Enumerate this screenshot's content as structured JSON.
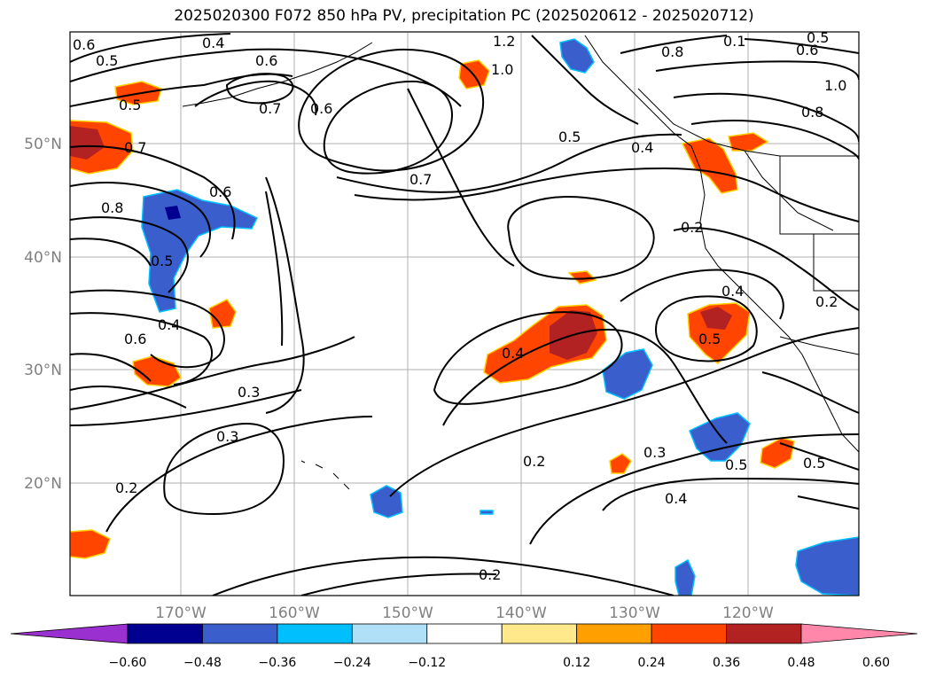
{
  "title": "2025020300 F072 850 hPa PV, precipitation PC (2025020612 - 2025020712)",
  "lat_labels": [
    "50°N",
    "40°N",
    "30°N",
    "20°N"
  ],
  "lon_labels": [
    "170°W",
    "160°W",
    "150°W",
    "140°W",
    "130°W",
    "120°W"
  ],
  "contour_labels": [
    "0.6",
    "0.4",
    "0.5",
    "0.6",
    "0.7",
    "0.6",
    "0.5",
    "0.7",
    "0.8",
    "0.6",
    "0.5",
    "0.4",
    "0.6",
    "0.3",
    "0.3",
    "0.2",
    "1.2",
    "1.0",
    "0.5",
    "0.7",
    "0.4",
    "0.8",
    "0.1",
    "0.5",
    "0.6",
    "1.0",
    "0.8",
    "0.2",
    "0.4",
    "0.2",
    "0.5",
    "0.4",
    "0.2",
    "0.3",
    "0.5",
    "0.4",
    "0.5",
    "0.2"
  ],
  "colorbar": {
    "colors": [
      "#9b30d0",
      "#000090",
      "#3a5fcd",
      "#00bfff",
      "#b0e0f8",
      "#ffffff",
      "#ffe98a",
      "#ffa000",
      "#ff4500",
      "#b22222",
      "#ff88aa"
    ],
    "tick_labels": [
      "−0.60",
      "−0.48",
      "−0.36",
      "−0.24",
      "−0.12",
      "0.12",
      "0.24",
      "0.36",
      "0.48",
      "0.60"
    ]
  }
}
